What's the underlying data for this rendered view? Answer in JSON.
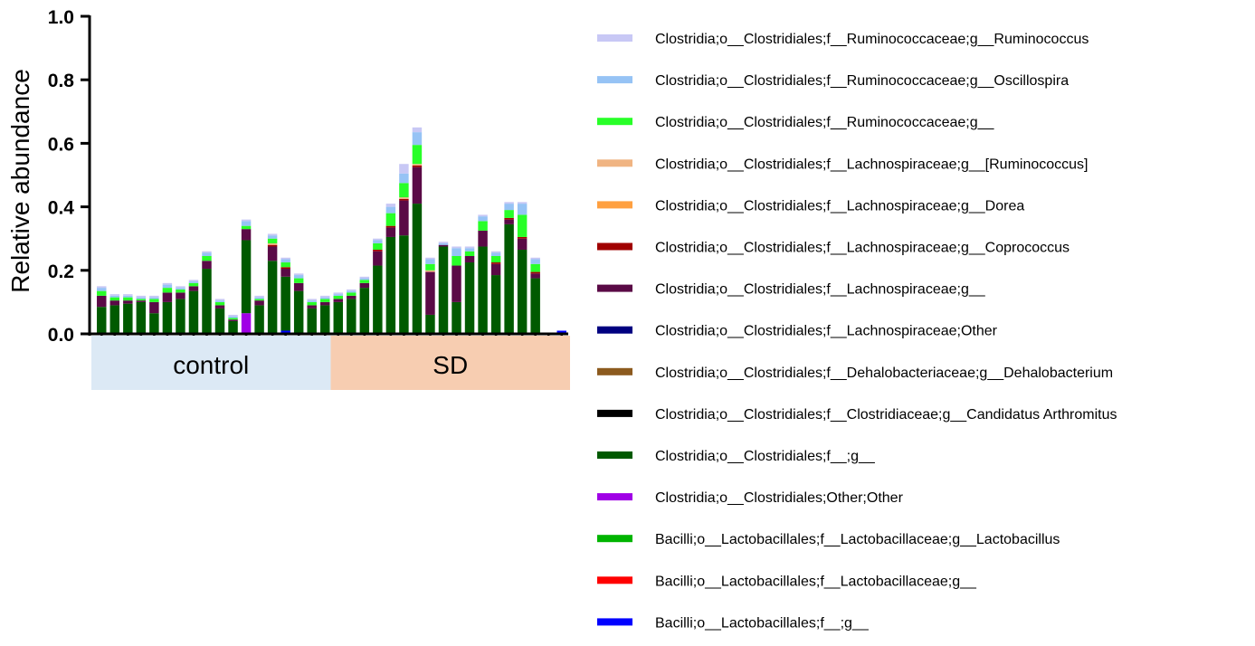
{
  "chart_data": {
    "type": "bar",
    "stacked": true,
    "title": "",
    "xlabel": "",
    "ylabel": "Relative abundance",
    "ylim": [
      0,
      1.0
    ],
    "yticks": [
      "0.0",
      "0.2",
      "0.4",
      "0.6",
      "0.8",
      "1.0"
    ],
    "grid": false,
    "legend_position": "right",
    "groups": [
      {
        "label": "control",
        "color": "#dce9f5",
        "n": 18
      },
      {
        "label": "SD",
        "color": "#f7cdb1",
        "n": 18
      }
    ],
    "series": [
      {
        "name": "Bacilli;o__Lactobacillales;f__;g__",
        "color": "#0000ff",
        "values": [
          0,
          0,
          0,
          0,
          0,
          0,
          0,
          0,
          0,
          0,
          0,
          0,
          0,
          0,
          0.01,
          0,
          0,
          0,
          0,
          0,
          0,
          0,
          0,
          0,
          0,
          0,
          0,
          0,
          0,
          0,
          0,
          0,
          0,
          0,
          0,
          0.01
        ]
      },
      {
        "name": "Bacilli;o__Lactobacillales;f__Lactobacillaceae;g__",
        "color": "#ff0000",
        "values": [
          0,
          0,
          0,
          0,
          0,
          0,
          0,
          0,
          0,
          0,
          0,
          0,
          0,
          0,
          0,
          0,
          0,
          0,
          0,
          0,
          0,
          0,
          0,
          0,
          0,
          0,
          0,
          0,
          0,
          0,
          0,
          0,
          0,
          0,
          0,
          0
        ]
      },
      {
        "name": "Bacilli;o__Lactobacillales;f__Lactobacillaceae;g__Lactobacillus",
        "color": "#00b400",
        "values": [
          0,
          0,
          0,
          0,
          0,
          0,
          0,
          0,
          0,
          0,
          0,
          0,
          0,
          0,
          0,
          0,
          0,
          0,
          0,
          0,
          0,
          0,
          0,
          0,
          0,
          0,
          0,
          0,
          0,
          0,
          0,
          0,
          0,
          0,
          0,
          0
        ]
      },
      {
        "name": "Clostridia;o__Clostridiales;Other;Other",
        "color": "#a000e6",
        "values": [
          0,
          0,
          0,
          0,
          0,
          0,
          0,
          0,
          0,
          0,
          0,
          0.065,
          0,
          0,
          0,
          0,
          0,
          0,
          0,
          0,
          0,
          0,
          0,
          0,
          0,
          0,
          0,
          0,
          0,
          0,
          0,
          0,
          0,
          0,
          0,
          0
        ]
      },
      {
        "name": "Clostridia;o__Clostridiales;f__;g__",
        "color": "#005a00",
        "values": [
          0.085,
          0.09,
          0.095,
          0.1,
          0.065,
          0.1,
          0.11,
          0.135,
          0.205,
          0.08,
          0.04,
          0.23,
          0.09,
          0.23,
          0.17,
          0.135,
          0.08,
          0.09,
          0.1,
          0.11,
          0.145,
          0.215,
          0.305,
          0.31,
          0.41,
          0.06,
          0.275,
          0.1,
          0.225,
          0.275,
          0.185,
          0.345,
          0.265,
          0.175,
          0,
          0
        ]
      },
      {
        "name": "Clostridia;o__Clostridiales;f__Clostridiaceae;g__Candidatus Arthromitus",
        "color": "#000000",
        "values": [
          0,
          0,
          0,
          0,
          0,
          0,
          0,
          0,
          0,
          0,
          0,
          0,
          0,
          0,
          0,
          0,
          0,
          0,
          0,
          0,
          0,
          0,
          0,
          0,
          0,
          0,
          0,
          0,
          0,
          0,
          0,
          0,
          0,
          0,
          0,
          0
        ]
      },
      {
        "name": "Clostridia;o__Clostridiales;f__Dehalobacteriaceae;g__Dehalobacterium",
        "color": "#8c5a1e",
        "values": [
          0,
          0,
          0,
          0,
          0,
          0,
          0,
          0,
          0,
          0,
          0,
          0,
          0,
          0,
          0,
          0,
          0,
          0,
          0,
          0,
          0,
          0,
          0,
          0,
          0,
          0,
          0,
          0,
          0,
          0,
          0,
          0,
          0,
          0,
          0,
          0
        ]
      },
      {
        "name": "Clostridia;o__Clostridiales;f__Lachnospiraceae;Other",
        "color": "#000080",
        "values": [
          0,
          0,
          0,
          0,
          0,
          0,
          0,
          0,
          0,
          0,
          0,
          0,
          0,
          0,
          0,
          0,
          0,
          0,
          0,
          0,
          0,
          0,
          0,
          0,
          0,
          0,
          0,
          0,
          0,
          0,
          0,
          0,
          0,
          0,
          0,
          0
        ]
      },
      {
        "name": "Clostridia;o__Clostridiales;f__Lachnospiraceae;g__",
        "color": "#5a0a46",
        "values": [
          0.035,
          0.015,
          0.01,
          0.005,
          0.035,
          0.03,
          0.02,
          0.015,
          0.025,
          0.01,
          0.005,
          0.035,
          0.015,
          0.045,
          0.025,
          0.025,
          0.01,
          0.01,
          0.01,
          0.01,
          0.015,
          0.045,
          0.03,
          0.11,
          0.115,
          0.135,
          0.005,
          0.115,
          0.02,
          0.05,
          0.035,
          0.015,
          0.035,
          0.015,
          0,
          0
        ]
      },
      {
        "name": "Clostridia;o__Clostridiales;f__Lachnospiraceae;g__Coprococcus",
        "color": "#a00000",
        "values": [
          0,
          0,
          0,
          0,
          0,
          0,
          0,
          0,
          0,
          0,
          0,
          0,
          0,
          0.005,
          0.005,
          0,
          0,
          0,
          0,
          0,
          0,
          0.005,
          0.005,
          0.005,
          0.005,
          0,
          0,
          0,
          0,
          0,
          0.005,
          0.005,
          0.005,
          0.005,
          0,
          0
        ]
      },
      {
        "name": "Clostridia;o__Clostridiales;f__Lachnospiraceae;g__Dorea",
        "color": "#ffa040",
        "values": [
          0,
          0,
          0,
          0,
          0,
          0,
          0,
          0,
          0,
          0,
          0,
          0,
          0,
          0,
          0,
          0,
          0,
          0,
          0,
          0,
          0,
          0,
          0,
          0,
          0,
          0,
          0,
          0,
          0,
          0,
          0,
          0,
          0,
          0,
          0,
          0
        ]
      },
      {
        "name": "Clostridia;o__Clostridiales;f__Lachnospiraceae;g__[Ruminococcus]",
        "color": "#f0b482",
        "values": [
          0,
          0,
          0,
          0,
          0,
          0,
          0,
          0,
          0,
          0,
          0,
          0,
          0,
          0.005,
          0,
          0,
          0,
          0,
          0,
          0,
          0,
          0,
          0,
          0.005,
          0.005,
          0.005,
          0,
          0,
          0,
          0,
          0,
          0,
          0,
          0,
          0,
          0
        ]
      },
      {
        "name": "Clostridia;o__Clostridiales;f__Ruminococcaceae;g__",
        "color": "#28ff28",
        "values": [
          0.015,
          0.01,
          0.01,
          0.005,
          0.01,
          0.015,
          0.01,
          0.01,
          0.015,
          0.01,
          0.005,
          0.01,
          0.005,
          0.015,
          0.015,
          0.015,
          0.01,
          0.01,
          0.01,
          0.01,
          0.01,
          0.02,
          0.04,
          0.045,
          0.06,
          0.02,
          0,
          0.03,
          0.015,
          0.03,
          0.02,
          0.025,
          0.07,
          0.025,
          0,
          0
        ]
      },
      {
        "name": "Clostridia;o__Clostridiales;f__Ruminococcaceae;g__Oscillospira",
        "color": "#96c3f5",
        "values": [
          0.01,
          0.005,
          0.005,
          0.005,
          0.005,
          0.01,
          0.005,
          0.005,
          0.01,
          0.005,
          0.005,
          0.015,
          0.005,
          0.01,
          0.01,
          0.01,
          0.005,
          0.005,
          0.005,
          0.005,
          0.005,
          0.01,
          0.02,
          0.03,
          0.04,
          0.015,
          0.005,
          0.025,
          0.01,
          0.015,
          0.01,
          0.02,
          0.035,
          0.015,
          0,
          0
        ]
      },
      {
        "name": "Clostridia;o__Clostridiales;f__Ruminococcaceae;g__Ruminococcus",
        "color": "#c8c8f5",
        "values": [
          0.005,
          0.005,
          0.005,
          0.005,
          0.005,
          0.005,
          0.005,
          0.005,
          0.005,
          0.005,
          0.005,
          0.005,
          0.005,
          0.005,
          0.005,
          0.005,
          0.005,
          0.005,
          0.005,
          0.005,
          0.005,
          0.005,
          0.01,
          0.03,
          0.015,
          0.005,
          0.005,
          0.005,
          0.005,
          0.005,
          0.005,
          0.005,
          0.005,
          0.005,
          0,
          0
        ]
      }
    ]
  }
}
